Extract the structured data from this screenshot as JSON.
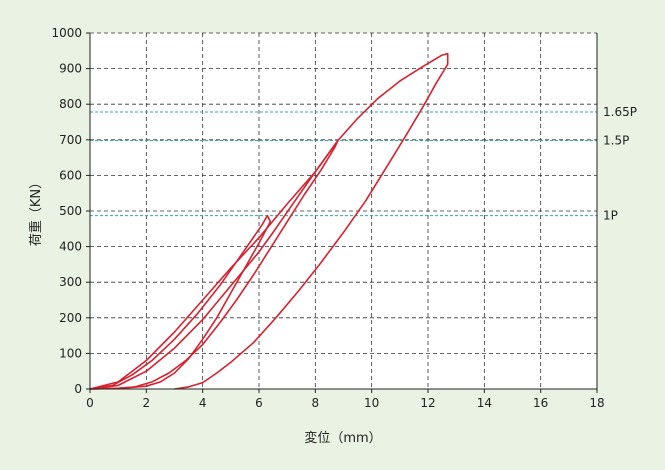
{
  "chart_data": {
    "type": "line",
    "xlabel": "変位（mm）",
    "ylabel": "荷重（KN）",
    "xlim": [
      0,
      18
    ],
    "ylim": [
      0,
      1000
    ],
    "x_ticks": [
      0,
      2,
      4,
      6,
      8,
      10,
      12,
      14,
      16,
      18
    ],
    "y_ticks": [
      0,
      100,
      200,
      300,
      400,
      500,
      600,
      700,
      800,
      900,
      1000
    ],
    "grid": true,
    "grid_style": "dashed",
    "colors": {
      "background": "#eaf3e3",
      "plot_background": "#ffffff",
      "curve": "#d7212f",
      "reference": "#2aa9a5",
      "grid": "#333333"
    },
    "reference_lines": [
      {
        "label": "1.65P",
        "y": 778
      },
      {
        "label": "1.5P",
        "y": 698
      },
      {
        "label": "1P",
        "y": 487
      }
    ],
    "series": [
      {
        "cycle": "1P",
        "points": [
          [
            0,
            0
          ],
          [
            0.8,
            10
          ],
          [
            1.5,
            40
          ],
          [
            2.2,
            80
          ],
          [
            3,
            140
          ],
          [
            3.8,
            210
          ],
          [
            4.6,
            290
          ],
          [
            5.4,
            380
          ],
          [
            6.1,
            460
          ],
          [
            6.3,
            487
          ],
          [
            6.4,
            470
          ],
          [
            6.0,
            410
          ],
          [
            5.5,
            340
          ],
          [
            5.0,
            270
          ],
          [
            4.5,
            200
          ],
          [
            4.0,
            140
          ],
          [
            3.5,
            85
          ],
          [
            3.0,
            45
          ],
          [
            2.5,
            20
          ],
          [
            2.0,
            8
          ],
          [
            1.0,
            2
          ],
          [
            0,
            0
          ]
        ]
      },
      {
        "cycle": "1.5P",
        "points": [
          [
            0,
            0
          ],
          [
            1,
            10
          ],
          [
            2,
            50
          ],
          [
            3,
            115
          ],
          [
            4,
            195
          ],
          [
            5,
            290
          ],
          [
            6,
            385
          ],
          [
            6.5,
            440
          ],
          [
            7.2,
            520
          ],
          [
            8,
            610
          ],
          [
            8.8,
            698
          ],
          [
            8.7,
            680
          ],
          [
            8.2,
            615
          ],
          [
            7.6,
            545
          ],
          [
            7.0,
            470
          ],
          [
            6.4,
            395
          ],
          [
            5.8,
            320
          ],
          [
            5.2,
            250
          ],
          [
            4.6,
            185
          ],
          [
            4.0,
            125
          ],
          [
            3.4,
            80
          ],
          [
            2.8,
            45
          ],
          [
            2.2,
            20
          ],
          [
            1.6,
            6
          ],
          [
            1.0,
            2
          ],
          [
            0,
            0
          ]
        ]
      },
      {
        "cycle": "1.65P",
        "points": [
          [
            0,
            0
          ],
          [
            1,
            20
          ],
          [
            2,
            80
          ],
          [
            3,
            160
          ],
          [
            4,
            250
          ],
          [
            5,
            340
          ],
          [
            6,
            425
          ],
          [
            7,
            520
          ],
          [
            8,
            610
          ],
          [
            8.8,
            698
          ],
          [
            9.5,
            760
          ],
          [
            10.2,
            815
          ],
          [
            11,
            865
          ],
          [
            11.8,
            905
          ],
          [
            12.5,
            938
          ],
          [
            12.7,
            942
          ],
          [
            12.7,
            912
          ],
          [
            12.3,
            860
          ],
          [
            11.8,
            790
          ],
          [
            11.2,
            710
          ],
          [
            10.5,
            620
          ],
          [
            9.8,
            530
          ],
          [
            9.0,
            440
          ],
          [
            8.2,
            355
          ],
          [
            7.4,
            275
          ],
          [
            6.6,
            200
          ],
          [
            5.8,
            130
          ],
          [
            5.0,
            75
          ],
          [
            4.5,
            45
          ],
          [
            4.0,
            18
          ],
          [
            3.5,
            6
          ],
          [
            3.0,
            0
          ]
        ]
      }
    ]
  }
}
